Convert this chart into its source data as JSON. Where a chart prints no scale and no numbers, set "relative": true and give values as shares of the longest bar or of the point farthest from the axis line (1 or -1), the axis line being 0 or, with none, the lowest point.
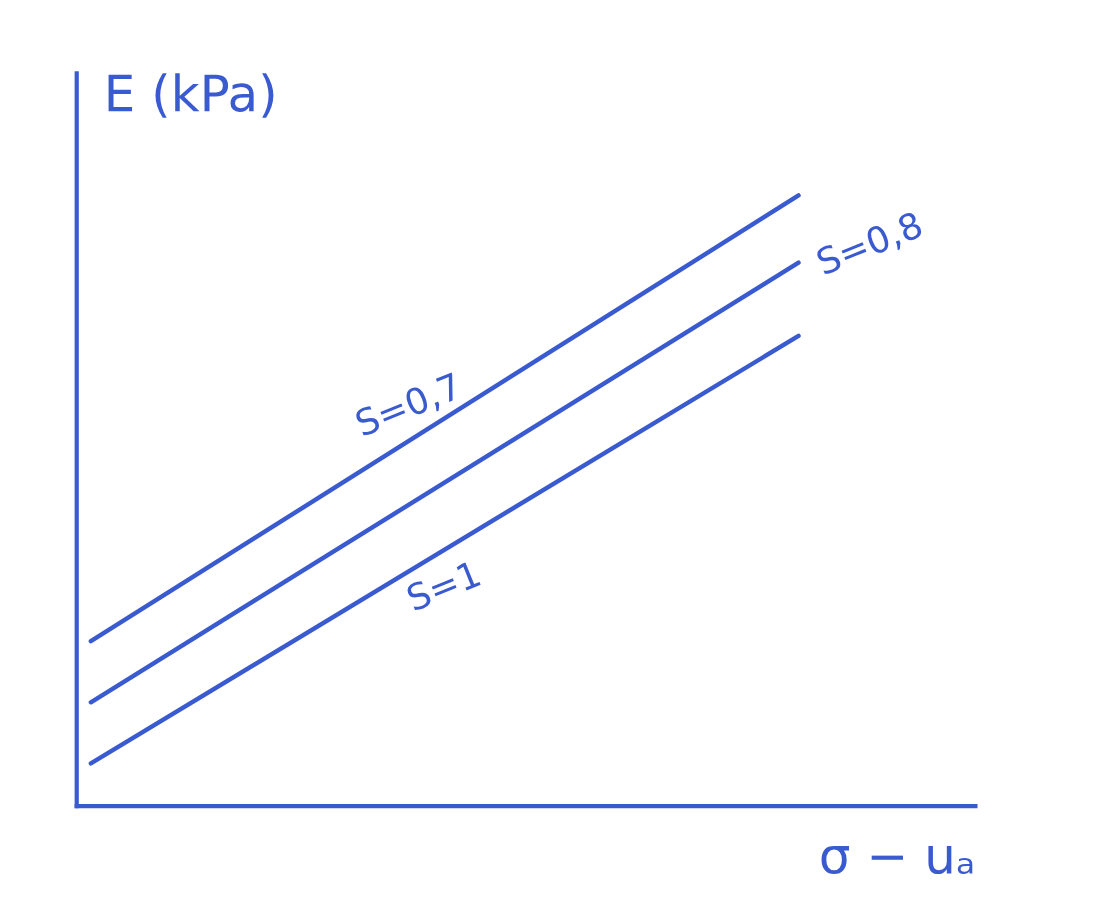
{
  "chart_data": {
    "type": "line",
    "relative": true,
    "ylabel": "E (kPa)",
    "xlabel": "σ − uₐ",
    "categories": [
      null,
      null
    ],
    "series": [
      {
        "name": "S=0,7",
        "color": "#3a5bd0",
        "values": [
          0.27,
          1.0
        ]
      },
      {
        "name": "S=0,8",
        "color": "#3a5bd0",
        "values": [
          0.17,
          0.89
        ]
      },
      {
        "name": "S=1",
        "color": "#3a5bd0",
        "values": [
          0.07,
          0.77
        ]
      }
    ],
    "legend": false,
    "marker": "none",
    "line_style": "solid"
  }
}
